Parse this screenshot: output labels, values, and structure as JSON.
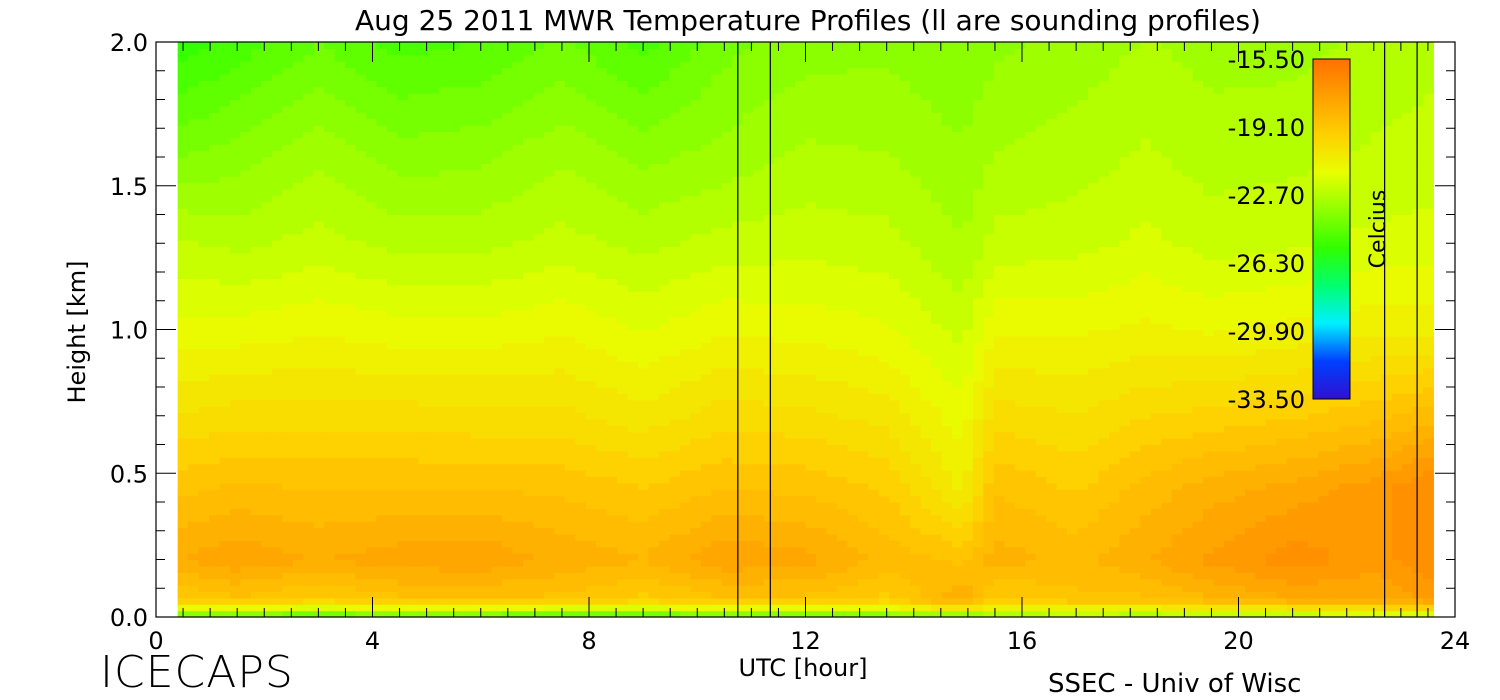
{
  "chart_data": {
    "type": "heatmap",
    "title": "Aug 25 2011 MWR Temperature Profiles (ll are sounding profiles)",
    "xlabel": "UTC [hour]",
    "ylabel": "Height [km]",
    "xlim": [
      0,
      24
    ],
    "ylim": [
      0,
      2
    ],
    "x_ticks": [
      "0",
      "4",
      "8",
      "12",
      "16",
      "20",
      "24"
    ],
    "y_ticks": [
      "0.0",
      "0.5",
      "1.0",
      "1.5",
      "2.0"
    ],
    "data_x_range": [
      0.4,
      23.6
    ],
    "colorbar": {
      "label": "Celcius",
      "tick_labels": [
        "-15.50",
        "-19.10",
        "-22.70",
        "-26.30",
        "-29.90",
        "-33.50"
      ],
      "range": [
        -33.5,
        -15.5
      ],
      "colors": [
        "#3010d0",
        "#0040ff",
        "#00f0ff",
        "#00ff70",
        "#30ff00",
        "#90ff00",
        "#e8ff00",
        "#ffd000",
        "#ffa000",
        "#ff7000"
      ]
    },
    "sounding_times": [
      10.75,
      11.35,
      22.7,
      23.3
    ],
    "profile_times": [
      0.4,
      1.5,
      3.0,
      4.5,
      6.0,
      7.5,
      9.0,
      10.5,
      12.0,
      13.5,
      14.9,
      15.5,
      17.0,
      18.3,
      19.5,
      21.0,
      22.5,
      23.6
    ],
    "profile_heights": [
      0.0,
      0.03,
      0.06,
      0.2,
      0.45,
      0.7,
      1.0,
      1.3,
      1.6,
      2.0
    ],
    "temperature_grid": [
      [
        -24.5,
        -24.5,
        -25.5,
        -24.5,
        -25.0,
        -25.5,
        -25.5,
        -24.5,
        -25.0,
        -24.5,
        -24.5,
        -24.0,
        -23.0,
        -23.5,
        -23.0,
        -23.0,
        -23.0,
        -23.0
      ],
      [
        -21.5,
        -21.5,
        -22.0,
        -21.5,
        -21.5,
        -22.0,
        -22.0,
        -21.5,
        -21.5,
        -21.5,
        -20.5,
        -21.0,
        -21.0,
        -21.0,
        -20.5,
        -20.5,
        -20.0,
        -20.0
      ],
      [
        -19.5,
        -19.0,
        -19.5,
        -19.0,
        -19.0,
        -19.0,
        -19.5,
        -19.0,
        -19.0,
        -19.5,
        -18.0,
        -19.5,
        -19.0,
        -19.0,
        -18.5,
        -18.0,
        -18.0,
        -17.5
      ],
      [
        -18.0,
        -17.6,
        -18.0,
        -17.7,
        -17.6,
        -18.1,
        -18.4,
        -17.6,
        -17.8,
        -18.6,
        -19.0,
        -18.2,
        -18.6,
        -18.0,
        -17.4,
        -16.8,
        -17.3,
        -16.6
      ],
      [
        -19.0,
        -18.8,
        -18.9,
        -18.9,
        -18.9,
        -19.0,
        -19.3,
        -18.9,
        -19.0,
        -19.4,
        -20.8,
        -18.9,
        -19.4,
        -18.7,
        -18.2,
        -17.8,
        -17.3,
        -16.6
      ],
      [
        -20.2,
        -20.0,
        -20.0,
        -20.0,
        -20.1,
        -20.1,
        -20.5,
        -20.0,
        -20.1,
        -20.4,
        -21.4,
        -20.0,
        -20.2,
        -19.8,
        -19.6,
        -19.4,
        -19.0,
        -18.6
      ],
      [
        -21.4,
        -21.4,
        -21.2,
        -21.4,
        -21.4,
        -21.2,
        -21.6,
        -21.2,
        -21.3,
        -21.5,
        -22.2,
        -21.2,
        -21.2,
        -21.0,
        -21.2,
        -21.0,
        -20.8,
        -20.8
      ],
      [
        -22.4,
        -22.6,
        -22.3,
        -22.6,
        -22.6,
        -22.3,
        -22.6,
        -22.3,
        -22.2,
        -22.3,
        -22.9,
        -22.3,
        -22.2,
        -21.9,
        -22.2,
        -22.1,
        -21.9,
        -21.8
      ],
      [
        -23.8,
        -23.6,
        -23.0,
        -23.6,
        -23.5,
        -23.0,
        -23.5,
        -23.2,
        -22.8,
        -22.9,
        -23.3,
        -22.9,
        -22.7,
        -22.4,
        -22.7,
        -22.6,
        -22.4,
        -22.3
      ],
      [
        -25.5,
        -25.0,
        -24.3,
        -24.9,
        -24.7,
        -24.2,
        -24.9,
        -24.0,
        -23.6,
        -23.5,
        -23.8,
        -23.5,
        -23.2,
        -22.9,
        -23.1,
        -23.1,
        -22.8,
        -22.6
      ]
    ]
  },
  "footer": {
    "project": "ICECAPS",
    "credit": "SSEC - Univ of Wisc"
  }
}
